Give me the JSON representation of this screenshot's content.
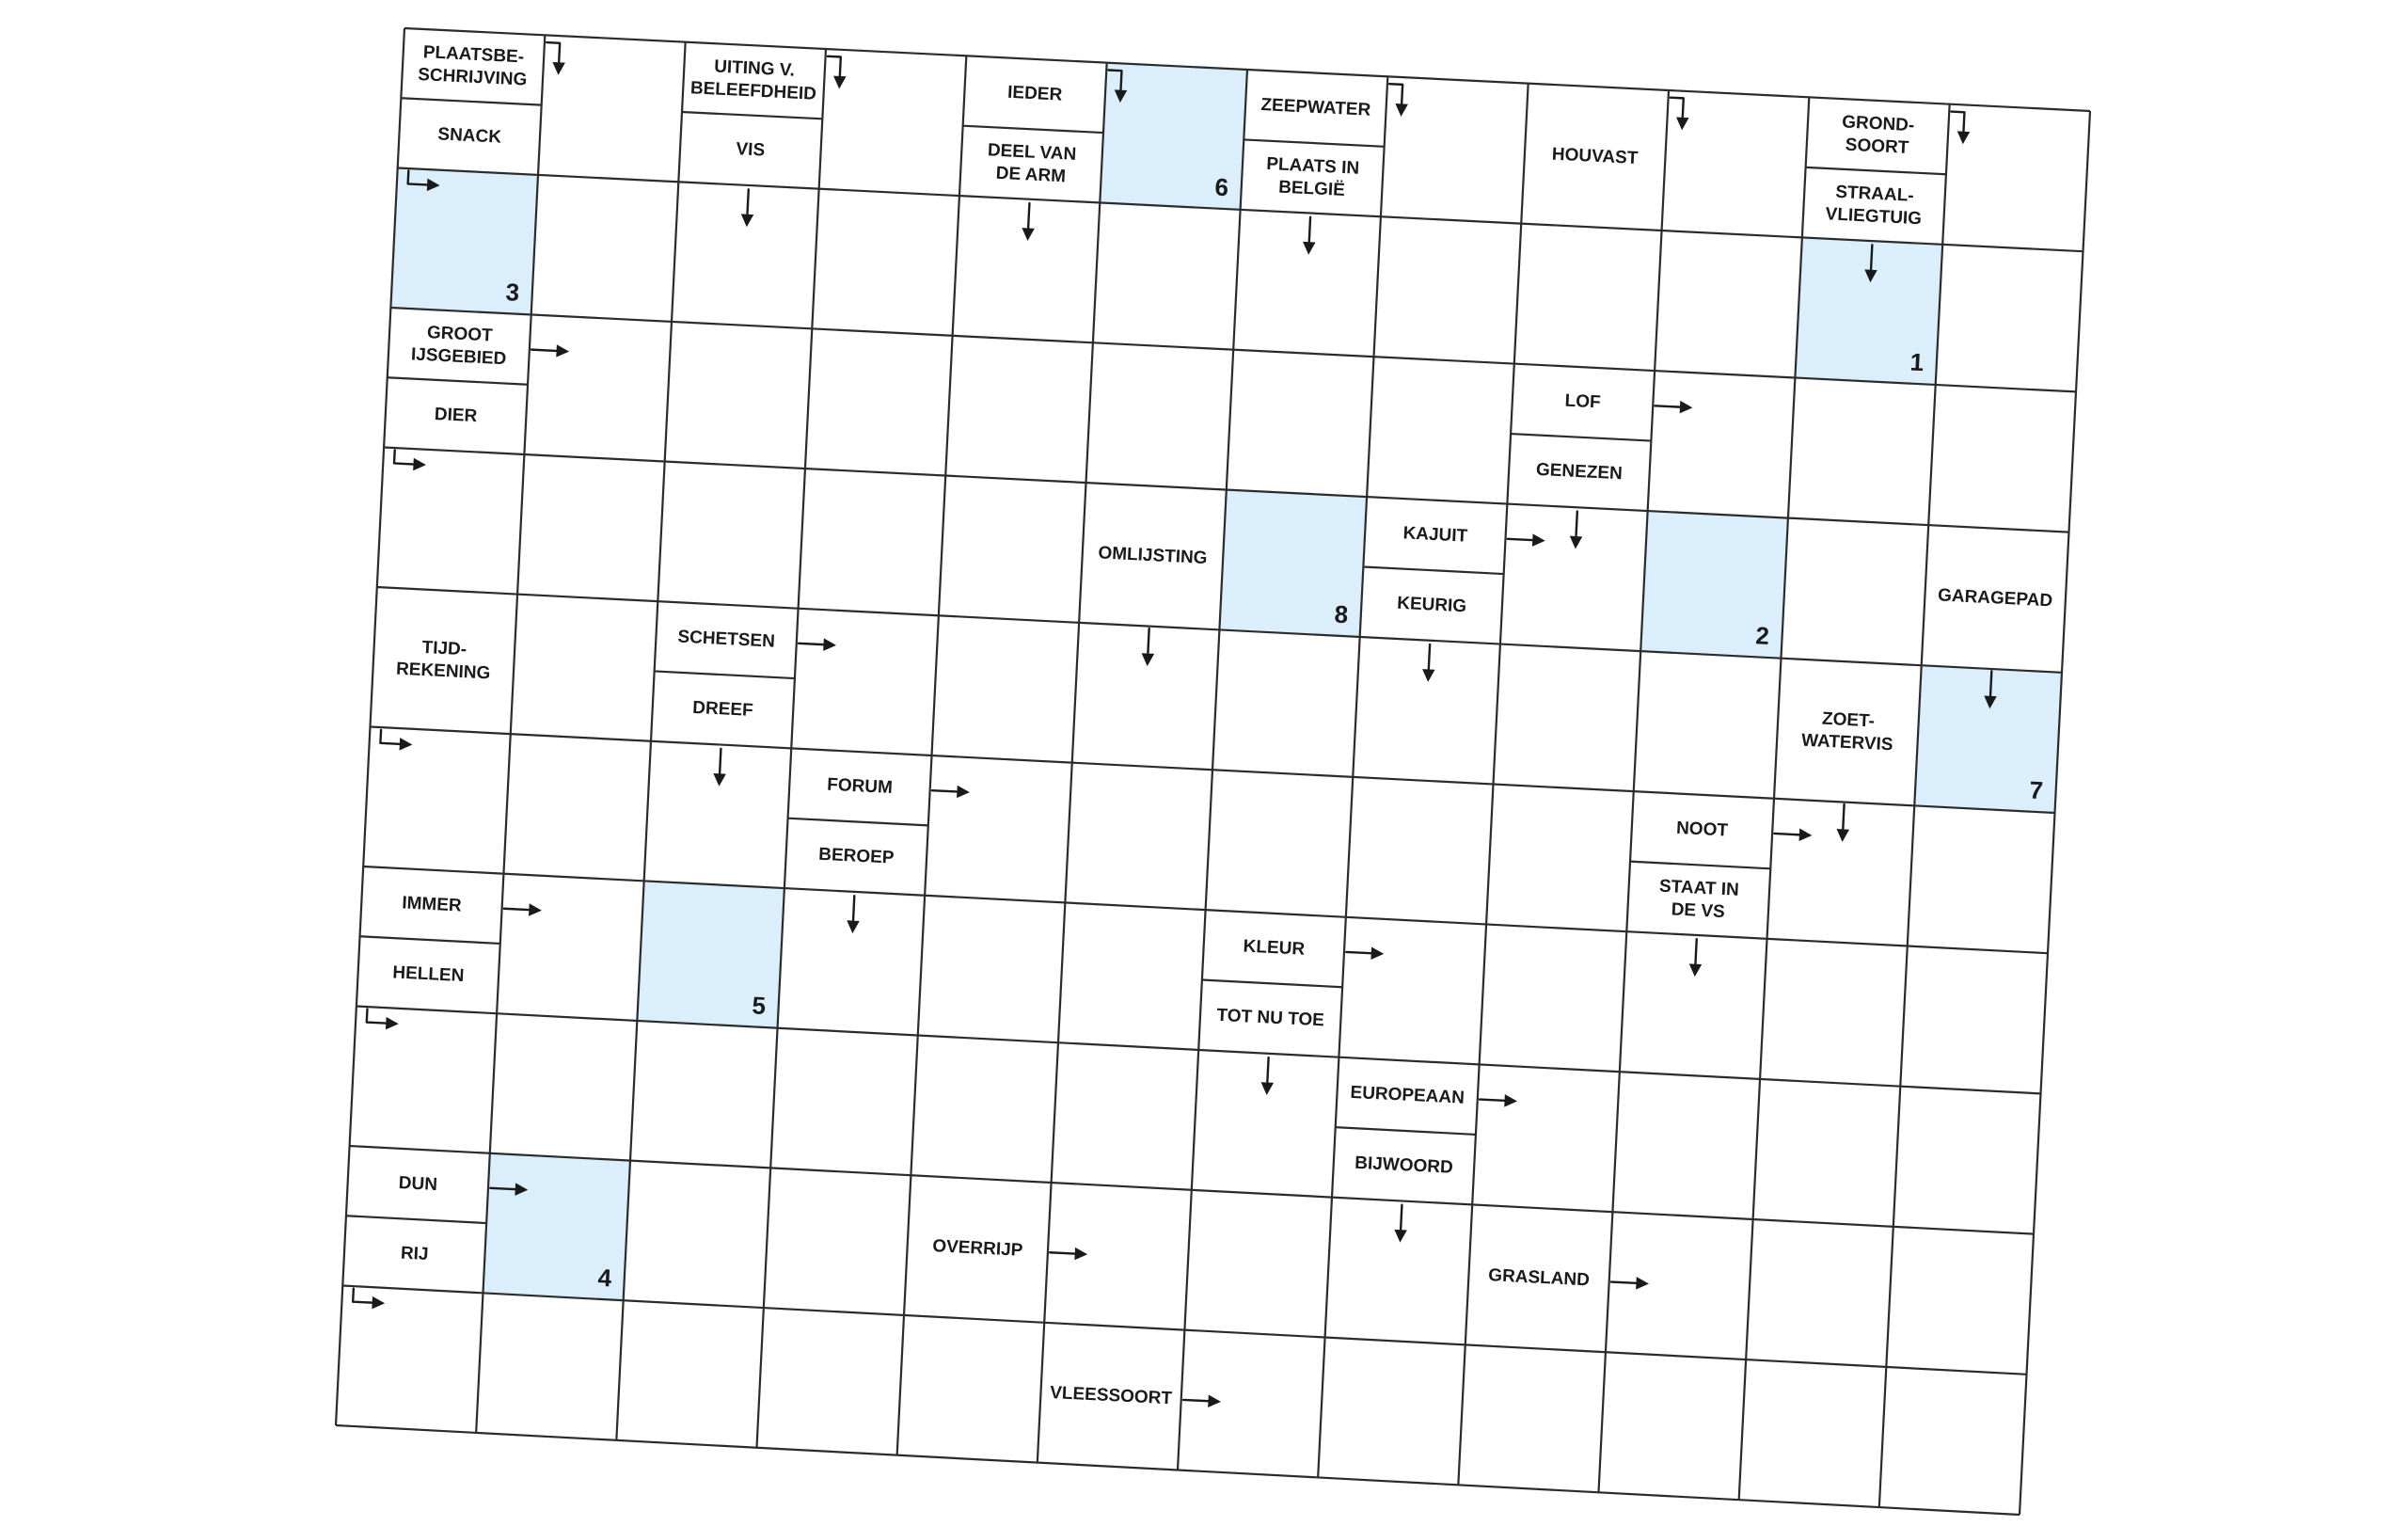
{
  "puzzle": {
    "type": "arrow-crossword",
    "language": "nl",
    "rows": 10,
    "cols": 12,
    "colors": {
      "grid_line": "#2b2b2b",
      "highlight": "#dbeefb",
      "text": "#1a1a1a",
      "background": "#ffffff"
    },
    "solution_cells": [
      {
        "number": "1",
        "row": 1,
        "col": 10
      },
      {
        "number": "2",
        "row": 3,
        "col": 9
      },
      {
        "number": "3",
        "row": 1,
        "col": 0
      },
      {
        "number": "4",
        "row": 8,
        "col": 1
      },
      {
        "number": "5",
        "row": 6,
        "col": 2
      },
      {
        "number": "6",
        "row": 0,
        "col": 5
      },
      {
        "number": "7",
        "row": 4,
        "col": 11
      },
      {
        "number": "8",
        "row": 3,
        "col": 6
      }
    ],
    "clues": [
      {
        "id": "c1",
        "row": 0,
        "col": 0,
        "part": "top",
        "lines": [
          "PLAATSBE-",
          "SCHRIJVING"
        ],
        "arrow": "right-down",
        "arrow_icon": "arrow-right-down-icon"
      },
      {
        "id": "c2",
        "row": 0,
        "col": 0,
        "part": "bottom",
        "lines": [
          "SNACK"
        ],
        "arrow": "down-right",
        "arrow_icon": "arrow-down-right-icon"
      },
      {
        "id": "c3",
        "row": 0,
        "col": 2,
        "part": "top",
        "lines": [
          "UITING V.",
          "BELEEFDHEID"
        ],
        "arrow": "right-down",
        "arrow_icon": "arrow-right-down-icon"
      },
      {
        "id": "c4",
        "row": 0,
        "col": 2,
        "part": "bottom",
        "lines": [
          "VIS"
        ],
        "arrow": "down",
        "arrow_icon": "arrow-down-icon"
      },
      {
        "id": "c5",
        "row": 0,
        "col": 4,
        "part": "top",
        "lines": [
          "IEDER"
        ],
        "arrow": "right-down",
        "arrow_icon": "arrow-right-down-icon"
      },
      {
        "id": "c6",
        "row": 0,
        "col": 4,
        "part": "bottom",
        "lines": [
          "DEEL VAN",
          "DE ARM"
        ],
        "arrow": "down",
        "arrow_icon": "arrow-down-icon"
      },
      {
        "id": "c7",
        "row": 0,
        "col": 6,
        "part": "top",
        "lines": [
          "ZEEPWATER"
        ],
        "arrow": "right-down",
        "arrow_icon": "arrow-right-down-icon"
      },
      {
        "id": "c8",
        "row": 0,
        "col": 6,
        "part": "bottom",
        "lines": [
          "PLAATS IN",
          "BELGIË"
        ],
        "arrow": "down",
        "arrow_icon": "arrow-down-icon"
      },
      {
        "id": "c9",
        "row": 0,
        "col": 8,
        "part": "full",
        "lines": [
          "HOUVAST"
        ],
        "arrow": "right-down",
        "arrow_icon": "arrow-right-down-icon"
      },
      {
        "id": "c10",
        "row": 0,
        "col": 10,
        "part": "top",
        "lines": [
          "GROND-",
          "SOORT"
        ],
        "arrow": "right-down",
        "arrow_icon": "arrow-right-down-icon"
      },
      {
        "id": "c11",
        "row": 0,
        "col": 10,
        "part": "bottom",
        "lines": [
          "STRAAL-",
          "VLIEGTUIG"
        ],
        "arrow": "down",
        "arrow_icon": "arrow-down-icon"
      },
      {
        "id": "c12",
        "row": 2,
        "col": 0,
        "part": "top",
        "lines": [
          "GROOT",
          "IJSGEBIED"
        ],
        "arrow": "right",
        "arrow_icon": "arrow-right-icon"
      },
      {
        "id": "c13",
        "row": 2,
        "col": 0,
        "part": "bottom",
        "lines": [
          "DIER"
        ],
        "arrow": "down-right",
        "arrow_icon": "arrow-down-right-icon"
      },
      {
        "id": "c14",
        "row": 2,
        "col": 8,
        "part": "top",
        "lines": [
          "LOF"
        ],
        "arrow": "right",
        "arrow_icon": "arrow-right-icon"
      },
      {
        "id": "c15",
        "row": 2,
        "col": 8,
        "part": "bottom",
        "lines": [
          "GENEZEN"
        ],
        "arrow": "down",
        "arrow_icon": "arrow-down-icon"
      },
      {
        "id": "c16",
        "row": 3,
        "col": 5,
        "part": "full",
        "lines": [
          "OMLIJSTING"
        ],
        "arrow": "down",
        "arrow_icon": "arrow-down-icon"
      },
      {
        "id": "c17",
        "row": 3,
        "col": 7,
        "part": "top",
        "lines": [
          "KAJUIT"
        ],
        "arrow": "right",
        "arrow_icon": "arrow-right-icon"
      },
      {
        "id": "c18",
        "row": 3,
        "col": 7,
        "part": "bottom",
        "lines": [
          "KEURIG"
        ],
        "arrow": "down",
        "arrow_icon": "arrow-down-icon"
      },
      {
        "id": "c19",
        "row": 3,
        "col": 11,
        "part": "full",
        "lines": [
          "GARAGEPAD"
        ],
        "arrow": "down",
        "arrow_icon": "arrow-down-icon"
      },
      {
        "id": "c20",
        "row": 4,
        "col": 0,
        "part": "full",
        "lines": [
          "TIJD-",
          "REKENING"
        ],
        "arrow": "down-right",
        "arrow_icon": "arrow-down-right-icon"
      },
      {
        "id": "c21",
        "row": 4,
        "col": 2,
        "part": "top",
        "lines": [
          "SCHETSEN"
        ],
        "arrow": "right",
        "arrow_icon": "arrow-right-icon"
      },
      {
        "id": "c22",
        "row": 4,
        "col": 2,
        "part": "bottom",
        "lines": [
          "DREEF"
        ],
        "arrow": "down",
        "arrow_icon": "arrow-down-icon"
      },
      {
        "id": "c23",
        "row": 4,
        "col": 10,
        "part": "full",
        "lines": [
          "ZOET-",
          "WATERVIS"
        ],
        "arrow": "down",
        "arrow_icon": "arrow-down-icon"
      },
      {
        "id": "c24",
        "row": 5,
        "col": 3,
        "part": "top",
        "lines": [
          "FORUM"
        ],
        "arrow": "right",
        "arrow_icon": "arrow-right-icon"
      },
      {
        "id": "c25",
        "row": 5,
        "col": 3,
        "part": "bottom",
        "lines": [
          "BEROEP"
        ],
        "arrow": "down",
        "arrow_icon": "arrow-down-icon"
      },
      {
        "id": "c26",
        "row": 5,
        "col": 9,
        "part": "top",
        "lines": [
          "NOOT"
        ],
        "arrow": "right",
        "arrow_icon": "arrow-right-icon"
      },
      {
        "id": "c27",
        "row": 5,
        "col": 9,
        "part": "bottom",
        "lines": [
          "STAAT IN",
          "DE VS"
        ],
        "arrow": "down",
        "arrow_icon": "arrow-down-icon"
      },
      {
        "id": "c28",
        "row": 6,
        "col": 0,
        "part": "top",
        "lines": [
          "IMMER"
        ],
        "arrow": "right",
        "arrow_icon": "arrow-right-icon"
      },
      {
        "id": "c29",
        "row": 6,
        "col": 0,
        "part": "bottom",
        "lines": [
          "HELLEN"
        ],
        "arrow": "down-right",
        "arrow_icon": "arrow-down-right-icon"
      },
      {
        "id": "c30",
        "row": 6,
        "col": 6,
        "part": "top",
        "lines": [
          "KLEUR"
        ],
        "arrow": "right",
        "arrow_icon": "arrow-right-icon"
      },
      {
        "id": "c31",
        "row": 6,
        "col": 6,
        "part": "bottom",
        "lines": [
          "TOT NU TOE"
        ],
        "arrow": "down",
        "arrow_icon": "arrow-down-icon"
      },
      {
        "id": "c32",
        "row": 7,
        "col": 7,
        "part": "top",
        "lines": [
          "EUROPEAAN"
        ],
        "arrow": "right",
        "arrow_icon": "arrow-right-icon"
      },
      {
        "id": "c33",
        "row": 7,
        "col": 7,
        "part": "bottom",
        "lines": [
          "BIJWOORD"
        ],
        "arrow": "down",
        "arrow_icon": "arrow-down-icon"
      },
      {
        "id": "c34",
        "row": 8,
        "col": 0,
        "part": "top",
        "lines": [
          "DUN"
        ],
        "arrow": "right",
        "arrow_icon": "arrow-right-icon"
      },
      {
        "id": "c35",
        "row": 8,
        "col": 0,
        "part": "bottom",
        "lines": [
          "RIJ"
        ],
        "arrow": "down-right",
        "arrow_icon": "arrow-down-right-icon"
      },
      {
        "id": "c36",
        "row": 8,
        "col": 4,
        "part": "full",
        "lines": [
          "OVERRIJP"
        ],
        "arrow": "right",
        "arrow_icon": "arrow-right-icon"
      },
      {
        "id": "c37",
        "row": 8,
        "col": 8,
        "part": "full",
        "lines": [
          "GRASLAND"
        ],
        "arrow": "right",
        "arrow_icon": "arrow-right-icon"
      },
      {
        "id": "c38",
        "row": 9,
        "col": 5,
        "part": "full",
        "lines": [
          "VLEESSOORT"
        ],
        "arrow": "right",
        "arrow_icon": "arrow-right-icon"
      }
    ]
  }
}
